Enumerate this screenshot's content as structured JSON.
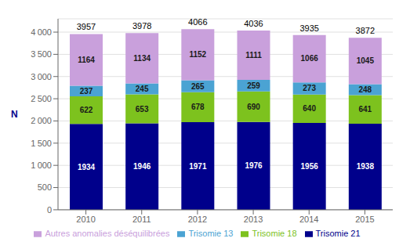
{
  "chart_data": {
    "type": "bar",
    "stacked": true,
    "data_labels": true,
    "grid": true,
    "legend": "bottom",
    "ylabel": "N",
    "categories": [
      "2010",
      "2011",
      "2012",
      "2013",
      "2014",
      "2015"
    ],
    "series": [
      {
        "name": "Trisomie 21",
        "color": "#00008B",
        "values": [
          1934,
          1946,
          1971,
          1976,
          1956,
          1938
        ]
      },
      {
        "name": "Trisomie 18",
        "color": "#7DC21E",
        "values": [
          622,
          653,
          678,
          690,
          640,
          641
        ]
      },
      {
        "name": "Trisomie 13",
        "color": "#4BA3D3",
        "values": [
          237,
          245,
          265,
          259,
          273,
          248
        ]
      },
      {
        "name": "Autres anomalies déséquilibrées",
        "color": "#C9A0DC",
        "values": [
          1164,
          1134,
          1152,
          1111,
          1066,
          1045
        ]
      }
    ],
    "totals": [
      3957,
      3978,
      4066,
      4036,
      3935,
      3872
    ],
    "ylim": [
      0,
      4300
    ],
    "yticks": [
      0,
      500,
      {
        "value": 1000,
        "label": "1 000"
      },
      {
        "value": 1500,
        "label": "1 500"
      },
      {
        "value": 2000,
        "label": "2 000"
      },
      {
        "value": 2500,
        "label": "2 500"
      },
      {
        "value": 3000,
        "label": "3 000"
      },
      {
        "value": 3500,
        "label": "3 500"
      },
      {
        "value": 4000,
        "label": "4 000"
      }
    ]
  }
}
